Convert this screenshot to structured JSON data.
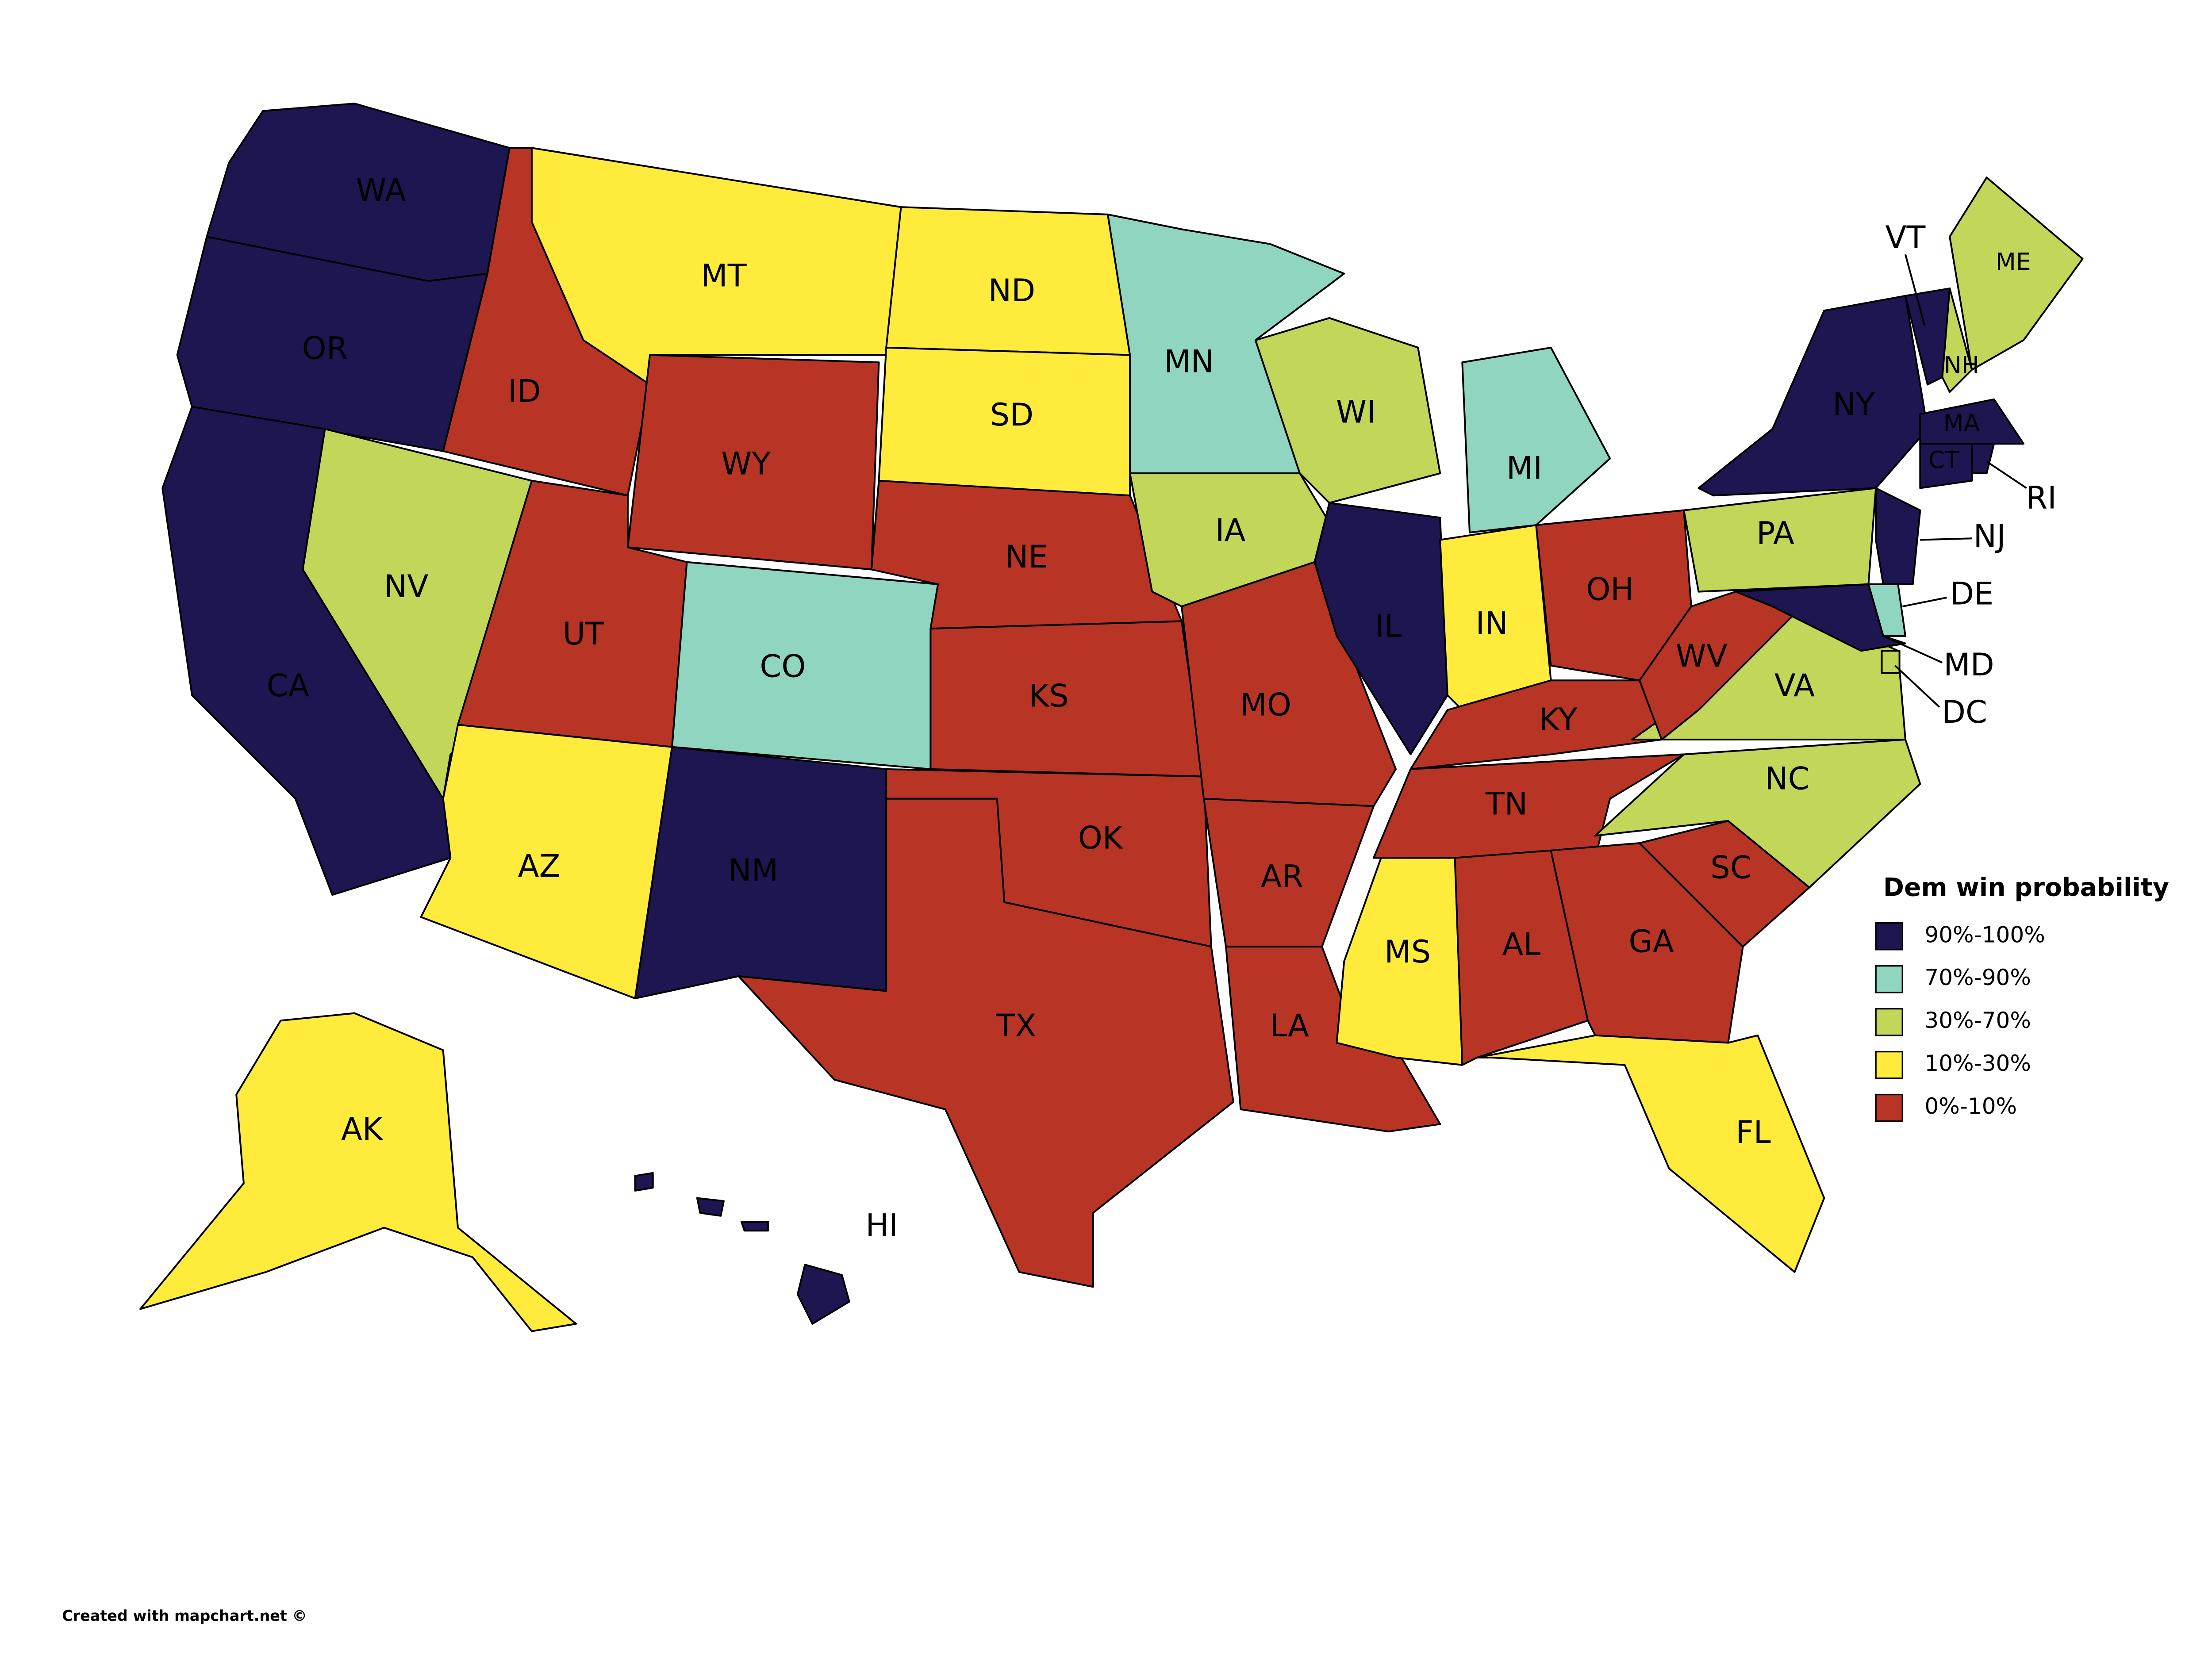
{
  "legend": {
    "title": "Dem win probability",
    "items": [
      {
        "label": "90%-100%",
        "color": "#1e1650"
      },
      {
        "label": "70%-90%",
        "color": "#8fd5bf"
      },
      {
        "label": "30%-70%",
        "color": "#c2d65a"
      },
      {
        "label": "10%-30%",
        "color": "#ffeb3b"
      },
      {
        "label": "0%-10%",
        "color": "#b83526"
      }
    ]
  },
  "states": [
    {
      "label": "WA",
      "color": "#1e1650"
    },
    {
      "label": "OR",
      "color": "#1e1650"
    },
    {
      "label": "CA",
      "color": "#1e1650"
    },
    {
      "label": "NV",
      "color": "#c2d65a"
    },
    {
      "label": "ID",
      "color": "#b83526"
    },
    {
      "label": "MT",
      "color": "#ffeb3b"
    },
    {
      "label": "WY",
      "color": "#b83526"
    },
    {
      "label": "UT",
      "color": "#b83526"
    },
    {
      "label": "CO",
      "color": "#8fd5bf"
    },
    {
      "label": "AZ",
      "color": "#ffeb3b"
    },
    {
      "label": "NM",
      "color": "#1e1650"
    },
    {
      "label": "ND",
      "color": "#ffeb3b"
    },
    {
      "label": "SD",
      "color": "#ffeb3b"
    },
    {
      "label": "NE",
      "color": "#b83526"
    },
    {
      "label": "KS",
      "color": "#b83526"
    },
    {
      "label": "OK",
      "color": "#b83526"
    },
    {
      "label": "TX",
      "color": "#b83526"
    },
    {
      "label": "MN",
      "color": "#8fd5bf"
    },
    {
      "label": "IA",
      "color": "#c2d65a"
    },
    {
      "label": "MO",
      "color": "#b83526"
    },
    {
      "label": "AR",
      "color": "#b83526"
    },
    {
      "label": "LA",
      "color": "#b83526"
    },
    {
      "label": "WI",
      "color": "#c2d65a"
    },
    {
      "label": "IL",
      "color": "#1e1650"
    },
    {
      "label": "MI",
      "color": "#8fd5bf"
    },
    {
      "label": "IN",
      "color": "#ffeb3b"
    },
    {
      "label": "OH",
      "color": "#b83526"
    },
    {
      "label": "KY",
      "color": "#b83526"
    },
    {
      "label": "TN",
      "color": "#b83526"
    },
    {
      "label": "MS",
      "color": "#ffeb3b"
    },
    {
      "label": "AL",
      "color": "#b83526"
    },
    {
      "label": "GA",
      "color": "#b83526"
    },
    {
      "label": "FL",
      "color": "#ffeb3b"
    },
    {
      "label": "SC",
      "color": "#b83526"
    },
    {
      "label": "NC",
      "color": "#c2d65a"
    },
    {
      "label": "VA",
      "color": "#c2d65a"
    },
    {
      "label": "WV",
      "color": "#b83526"
    },
    {
      "label": "PA",
      "color": "#c2d65a"
    },
    {
      "label": "NY",
      "color": "#1e1650"
    },
    {
      "label": "VT",
      "color": "#1e1650"
    },
    {
      "label": "NH",
      "color": "#c2d65a"
    },
    {
      "label": "ME",
      "color": "#c2d65a"
    },
    {
      "label": "MA",
      "color": "#1e1650"
    },
    {
      "label": "CT",
      "color": "#1e1650"
    },
    {
      "label": "RI",
      "color": "#1e1650"
    },
    {
      "label": "NJ",
      "color": "#1e1650"
    },
    {
      "label": "DE",
      "color": "#8fd5bf"
    },
    {
      "label": "MD",
      "color": "#1e1650"
    },
    {
      "label": "DC",
      "color": "#c2d65a"
    },
    {
      "label": "AK",
      "color": "#ffeb3b"
    },
    {
      "label": "HI",
      "color": "#1e1650"
    }
  ],
  "footer": "Created with mapchart.net ©"
}
